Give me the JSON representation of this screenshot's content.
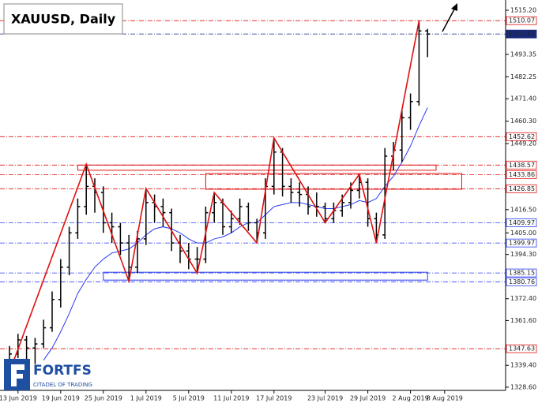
{
  "chart_data": {
    "type": "ohlc",
    "title": "XAUUSD, Daily",
    "categories": [
      null,
      "13 Jun 2019",
      null,
      null,
      null,
      null,
      "19 Jun 2019",
      null,
      null,
      null,
      null,
      "25 Jun 2019",
      null,
      null,
      null,
      null,
      "1 Jul 2019",
      null,
      null,
      null,
      null,
      "5 Jul 2019",
      null,
      null,
      null,
      null,
      "11 Jul 2019",
      null,
      null,
      null,
      null,
      "17 Jul 2019",
      null,
      null,
      null,
      null,
      null,
      "23 Jul 2019",
      null,
      null,
      null,
      null,
      "29 Jul 2019",
      null,
      null,
      null,
      null,
      "2 Aug 2019",
      null,
      null,
      null,
      "8 Aug 2019"
    ],
    "ohlc": {
      "color": "#000000",
      "open": [
        1340,
        1345,
        1352,
        1348,
        1350,
        1358,
        1372,
        1388,
        1405,
        1418,
        1428,
        1425,
        1410,
        1408,
        1400,
        1388,
        1402,
        1420,
        1418,
        1415,
        1400,
        1396,
        1392,
        1392,
        1415,
        1420,
        1408,
        1412,
        1418,
        1410,
        1405,
        1428,
        1445,
        1428,
        1425,
        1424,
        1418,
        1418,
        1412,
        1416,
        1420,
        1426,
        1430,
        1412,
        1404,
        1443,
        1446,
        1462,
        1470,
        1505,
        null,
        null
      ],
      "high": [
        1349,
        1355,
        1354,
        1353,
        1362,
        1376,
        1392,
        1408,
        1422,
        1439,
        1432,
        1428,
        1415,
        1410,
        1404,
        1406,
        1427,
        1424,
        1422,
        1417,
        1404,
        1400,
        1398,
        1418,
        1425,
        1422,
        1416,
        1422,
        1420,
        1412,
        1432,
        1452,
        1447,
        1432,
        1430,
        1428,
        1425,
        1420,
        1420,
        1424,
        1430,
        1434,
        1432,
        1415,
        1447,
        1450,
        1466,
        1474,
        1510,
        1506,
        null,
        null
      ],
      "low": [
        1336,
        1343,
        1342,
        1340,
        1348,
        1356,
        1368,
        1384,
        1402,
        1414,
        1415,
        1405,
        1400,
        1394,
        1381,
        1385,
        1399,
        1410,
        1408,
        1396,
        1390,
        1387,
        1385,
        1390,
        1410,
        1404,
        1405,
        1409,
        1406,
        1400,
        1402,
        1424,
        1423,
        1420,
        1418,
        1414,
        1413,
        1410,
        1410,
        1413,
        1417,
        1422,
        1408,
        1400,
        1402,
        1436,
        1440,
        1456,
        1468,
        1492,
        null,
        null
      ],
      "close": [
        1345,
        1352,
        1348,
        1350,
        1358,
        1372,
        1388,
        1405,
        1418,
        1428,
        1425,
        1410,
        1408,
        1400,
        1388,
        1402,
        1420,
        1418,
        1415,
        1400,
        1396,
        1392,
        1392,
        1415,
        1420,
        1408,
        1412,
        1418,
        1410,
        1405,
        1428,
        1445,
        1428,
        1425,
        1424,
        1418,
        1418,
        1412,
        1416,
        1420,
        1426,
        1430,
        1412,
        1404,
        1443,
        1446,
        1462,
        1470,
        1505,
        1503.45,
        null,
        null
      ]
    },
    "ma": {
      "color": "#2a3cf0",
      "values": [
        null,
        null,
        null,
        null,
        1342,
        1348,
        1356,
        1365,
        1375,
        1382,
        1388,
        1392,
        1395,
        1396,
        1397,
        1400,
        1404,
        1407,
        1408,
        1407,
        1405,
        1402,
        1400,
        1400,
        1402,
        1403,
        1405,
        1408,
        1410,
        1410,
        1414,
        1418,
        1419,
        1420,
        1420,
        1419,
        1418,
        1417,
        1417,
        1418,
        1419,
        1421,
        1420,
        1422,
        1428,
        1433,
        1440,
        1448,
        1458,
        1467,
        null,
        null
      ]
    },
    "zigzag": {
      "color": "#e01010",
      "x": [
        0,
        9,
        14,
        16,
        22,
        24,
        29,
        31,
        37,
        41,
        43,
        48
      ],
      "values": [
        1336,
        1439,
        1381,
        1427,
        1385,
        1425,
        1400,
        1452,
        1410,
        1434,
        1400,
        1510
      ]
    },
    "levels": [
      {
        "value": 1510.07,
        "color": "#e01010"
      },
      {
        "value": 1503.45,
        "color": "#1a2a7a"
      },
      {
        "value": 1452.62,
        "color": "#e01010"
      },
      {
        "value": 1438.57,
        "color": "#e01010"
      },
      {
        "value": 1433.86,
        "color": "#e01010"
      },
      {
        "value": 1426.85,
        "color": "#e01010"
      },
      {
        "value": 1409.97,
        "color": "#2a3cf0"
      },
      {
        "value": 1399.97,
        "color": "#2a3cf0"
      },
      {
        "value": 1385.15,
        "color": "#2a3cf0"
      },
      {
        "value": 1380.76,
        "color": "#2a3cf0"
      },
      {
        "value": 1347.63,
        "color": "#e01010"
      }
    ],
    "zones": [
      {
        "x": [
          8,
          50
        ],
        "y": [
          1438.57,
          1436
        ],
        "color": "#e01010"
      },
      {
        "x": [
          23,
          53
        ],
        "y": [
          1434.4,
          1426.6
        ],
        "color": "#e01010"
      },
      {
        "x": [
          11,
          49
        ],
        "y": [
          1385.5,
          1381.6
        ],
        "color": "#2a3cf0"
      }
    ],
    "ylim": [
      1327.0,
      1520.3
    ],
    "yticks": [
      {
        "value": 1328.6,
        "label": "1328.60"
      },
      {
        "value": 1339.4,
        "label": "1339.40"
      },
      {
        "value": 1361.6,
        "label": "1361.60"
      },
      {
        "value": 1372.4,
        "label": "1372.40"
      },
      {
        "value": 1394.3,
        "label": "1394.30"
      },
      {
        "value": 1405,
        "label": "1405.00"
      },
      {
        "value": 1416.5,
        "label": "1416.50"
      },
      {
        "value": 1449.2,
        "label": "1449.20"
      },
      {
        "value": 1460.3,
        "label": "1460.30"
      },
      {
        "value": 1471.4,
        "label": "1471.40"
      },
      {
        "value": 1482.25,
        "label": "1482.25"
      },
      {
        "value": 1493.35,
        "label": "1493.35"
      },
      {
        "value": 1515.2,
        "label": "1515.20"
      }
    ]
  },
  "logo": {
    "name": "FORTFS",
    "tagline": "CITADEL OF TRADING"
  }
}
